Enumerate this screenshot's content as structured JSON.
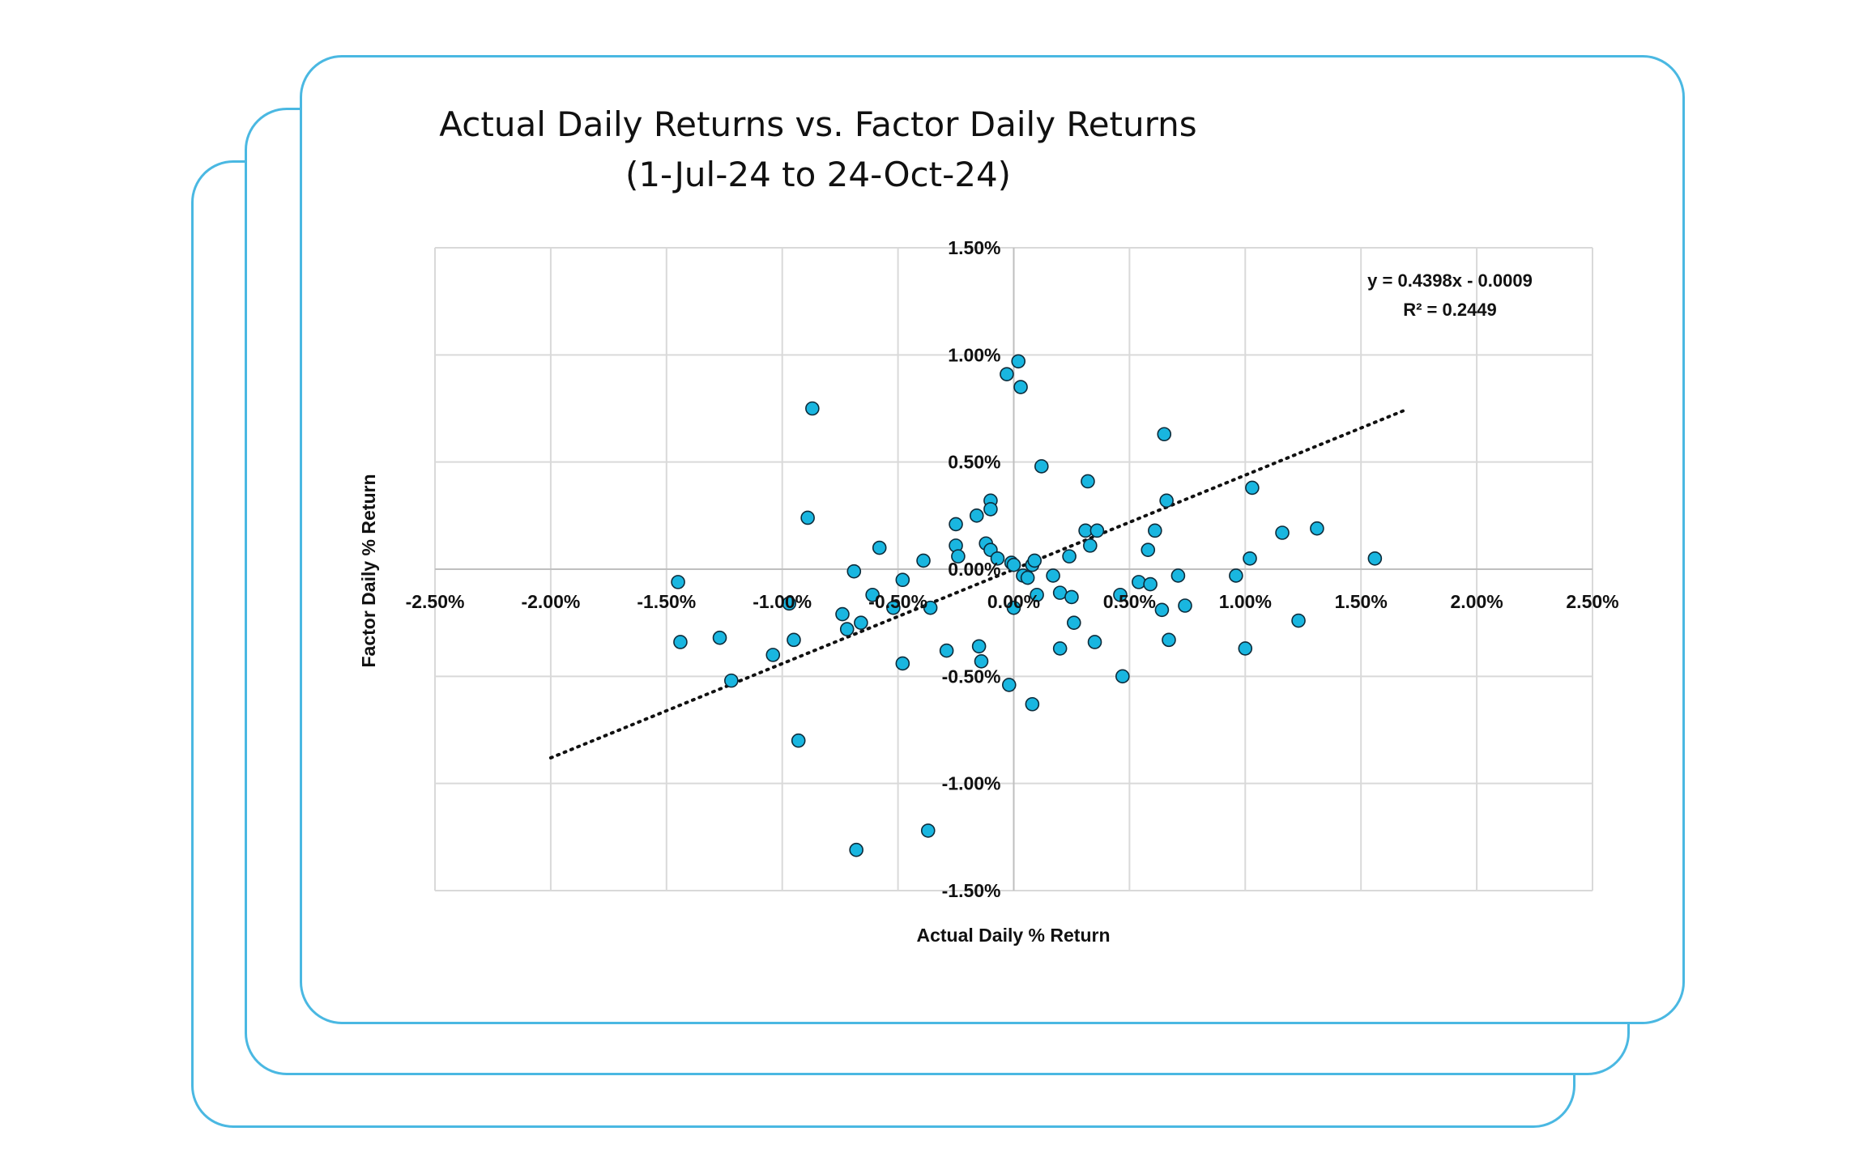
{
  "colors": {
    "card_border": "#4ab8e2",
    "point_fill": "#19b6e0",
    "point_stroke": "#0d2b3a",
    "grid": "#d9d9d9",
    "trendline": "#111111"
  },
  "chart_data": {
    "type": "scatter",
    "title": "Actual Daily Returns vs. Factor Daily Returns",
    "subtitle": "(1-Jul-24 to 24-Oct-24)",
    "xlabel": "Actual Daily % Return",
    "ylabel": "Factor Daily % Return",
    "xlim": [
      -2.5,
      2.5
    ],
    "ylim": [
      -1.5,
      1.5
    ],
    "x_ticks": [
      -2.5,
      -2.0,
      -1.5,
      -1.0,
      -0.5,
      0.0,
      0.5,
      1.0,
      1.5,
      2.0,
      2.5
    ],
    "y_ticks": [
      -1.5,
      -1.0,
      -0.5,
      0.0,
      0.5,
      1.0,
      1.5
    ],
    "x_tick_labels": [
      "-2.50%",
      "-2.00%",
      "-1.50%",
      "-1.00%",
      "-0.50%",
      "0.00%",
      "0.50%",
      "1.00%",
      "1.50%",
      "2.00%",
      "2.50%"
    ],
    "y_tick_labels": [
      "-1.50%",
      "-1.00%",
      "-0.50%",
      "0.00%",
      "0.50%",
      "1.00%",
      "1.50%"
    ],
    "grid": true,
    "legend": "none",
    "trendline": {
      "type": "linear",
      "slope": 0.4398,
      "intercept": -0.0009,
      "x_range": [
        -2.0,
        1.7
      ],
      "style": "dotted",
      "equation_label": "y = 0.4398x - 0.0009",
      "r2_label": "R² = 0.2449"
    },
    "series": [
      {
        "points": [
          [
            -1.45,
            -0.06
          ],
          [
            -1.44,
            -0.34
          ],
          [
            -1.27,
            -0.32
          ],
          [
            -1.22,
            -0.52
          ],
          [
            -1.04,
            -0.4
          ],
          [
            -0.97,
            -0.16
          ],
          [
            -0.95,
            -0.33
          ],
          [
            -0.93,
            -0.8
          ],
          [
            -0.89,
            0.24
          ],
          [
            -0.87,
            0.75
          ],
          [
            -0.74,
            -0.21
          ],
          [
            -0.72,
            -0.28
          ],
          [
            -0.69,
            -0.01
          ],
          [
            -0.68,
            -1.31
          ],
          [
            -0.66,
            -0.25
          ],
          [
            -0.61,
            -0.12
          ],
          [
            -0.58,
            0.1
          ],
          [
            -0.52,
            -0.18
          ],
          [
            -0.48,
            -0.05
          ],
          [
            -0.48,
            -0.44
          ],
          [
            -0.39,
            0.04
          ],
          [
            -0.37,
            -1.22
          ],
          [
            -0.36,
            -0.18
          ],
          [
            -0.29,
            -0.38
          ],
          [
            -0.25,
            0.21
          ],
          [
            -0.25,
            0.11
          ],
          [
            -0.24,
            0.06
          ],
          [
            -0.16,
            0.25
          ],
          [
            -0.15,
            -0.36
          ],
          [
            -0.14,
            -0.43
          ],
          [
            -0.12,
            0.12
          ],
          [
            -0.1,
            0.32
          ],
          [
            -0.1,
            0.28
          ],
          [
            -0.1,
            0.09
          ],
          [
            -0.07,
            0.05
          ],
          [
            -0.03,
            0.91
          ],
          [
            -0.02,
            -0.54
          ],
          [
            -0.01,
            0.03
          ],
          [
            0.0,
            0.02
          ],
          [
            0.0,
            -0.18
          ],
          [
            0.02,
            0.97
          ],
          [
            0.03,
            0.85
          ],
          [
            0.04,
            -0.03
          ],
          [
            0.06,
            -0.04
          ],
          [
            0.08,
            0.02
          ],
          [
            0.08,
            -0.63
          ],
          [
            0.09,
            0.04
          ],
          [
            0.1,
            -0.12
          ],
          [
            0.12,
            0.48
          ],
          [
            0.17,
            -0.03
          ],
          [
            0.2,
            -0.11
          ],
          [
            0.2,
            -0.37
          ],
          [
            0.24,
            0.06
          ],
          [
            0.25,
            -0.13
          ],
          [
            0.26,
            -0.25
          ],
          [
            0.31,
            0.18
          ],
          [
            0.32,
            0.41
          ],
          [
            0.33,
            0.11
          ],
          [
            0.35,
            -0.34
          ],
          [
            0.36,
            0.18
          ],
          [
            0.46,
            -0.12
          ],
          [
            0.47,
            -0.5
          ],
          [
            0.54,
            -0.06
          ],
          [
            0.58,
            0.09
          ],
          [
            0.59,
            -0.07
          ],
          [
            0.61,
            0.18
          ],
          [
            0.64,
            -0.19
          ],
          [
            0.65,
            0.63
          ],
          [
            0.66,
            0.32
          ],
          [
            0.67,
            -0.33
          ],
          [
            0.71,
            -0.03
          ],
          [
            0.74,
            -0.17
          ],
          [
            0.96,
            -0.03
          ],
          [
            1.0,
            -0.37
          ],
          [
            1.02,
            0.05
          ],
          [
            1.03,
            0.38
          ],
          [
            1.16,
            0.17
          ],
          [
            1.23,
            -0.24
          ],
          [
            1.31,
            0.19
          ],
          [
            1.56,
            0.05
          ]
        ]
      }
    ]
  }
}
